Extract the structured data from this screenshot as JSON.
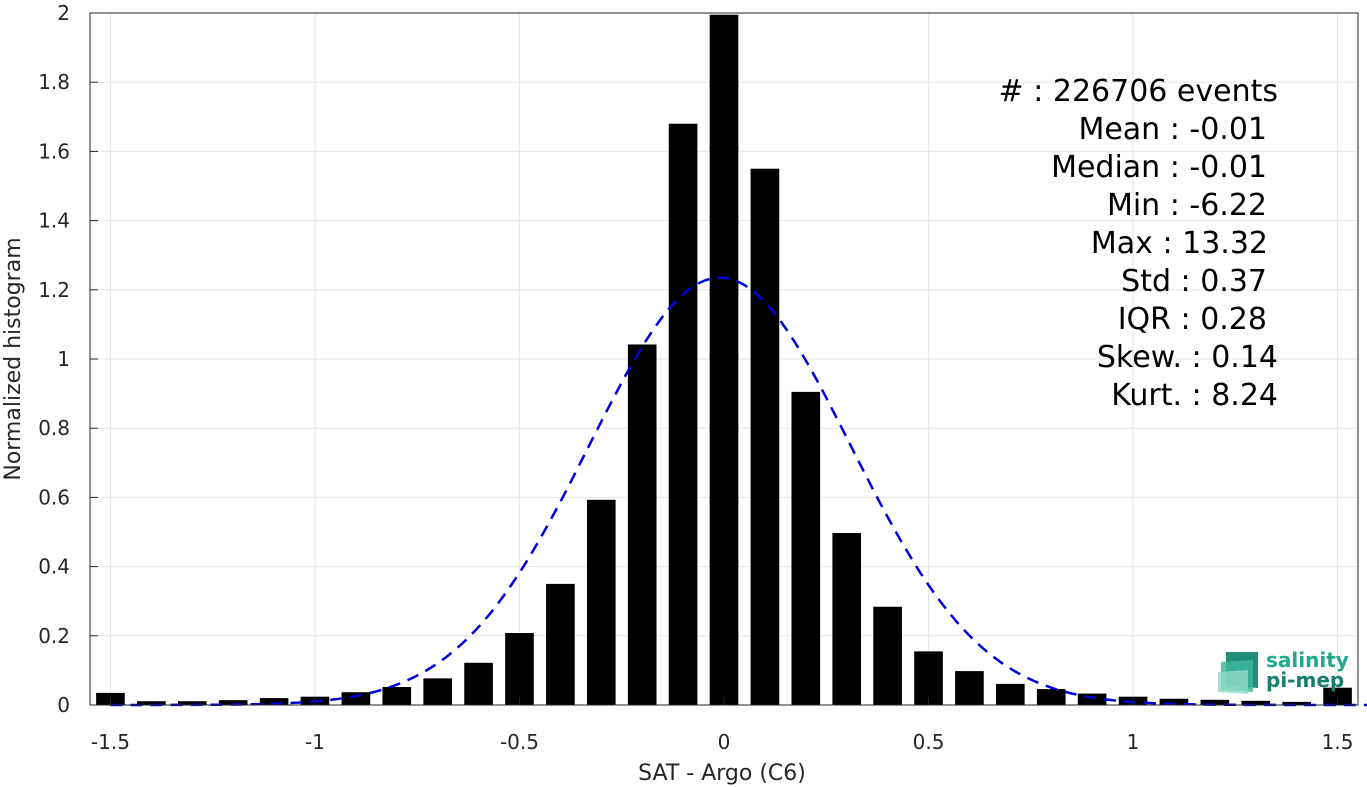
{
  "chart_data": {
    "type": "bar",
    "title": "",
    "xlabel": "SAT - Argo (C6)",
    "ylabel": "Normalized histogram",
    "xlim": [
      -1.55,
      1.55
    ],
    "ylim": [
      0,
      2
    ],
    "grid": true,
    "xticks": [
      -1.5,
      -1,
      -0.5,
      0,
      0.5,
      1,
      1.5
    ],
    "xtick_labels": [
      "-1.5",
      "-1",
      "-0.5",
      "0",
      "0.5",
      "1",
      "1.5"
    ],
    "yticks": [
      0,
      0.2,
      0.4,
      0.6,
      0.8,
      1,
      1.2,
      1.4,
      1.6,
      1.8,
      2
    ],
    "ytick_labels": [
      "0",
      "0.2",
      "0.4",
      "0.6",
      "0.8",
      "1",
      "1.2",
      "1.4",
      "1.6",
      "1.8",
      "2"
    ],
    "bar_color": "#000000",
    "bar_width": 0.07,
    "x": [
      -1.5,
      -1.4,
      -1.3,
      -1.2,
      -1.1,
      -1.0,
      -0.9,
      -0.8,
      -0.7,
      -0.6,
      -0.5,
      -0.4,
      -0.3,
      -0.2,
      -0.1,
      0.0,
      0.1,
      0.2,
      0.3,
      0.4,
      0.5,
      0.6,
      0.7,
      0.8,
      0.9,
      1.0,
      1.1,
      1.2,
      1.3,
      1.4,
      1.5
    ],
    "values": [
      0.035,
      0.011,
      0.011,
      0.014,
      0.02,
      0.024,
      0.037,
      0.052,
      0.077,
      0.122,
      0.208,
      0.35,
      0.593,
      1.042,
      1.68,
      1.995,
      1.55,
      0.905,
      0.497,
      0.284,
      0.155,
      0.098,
      0.061,
      0.046,
      0.033,
      0.024,
      0.018,
      0.015,
      0.012,
      0.009,
      0.05
    ],
    "fit_curve": {
      "style": "dashed",
      "color": "#0000dd",
      "mean": -0.01,
      "std": 0.32,
      "peak": 1.235
    },
    "annotations": [
      {
        "label": "#",
        "value": ": 226706 events"
      },
      {
        "label": "Mean",
        "value": ": -0.01"
      },
      {
        "label": "Median",
        "value": ": -0.01"
      },
      {
        "label": "Min",
        "value": ": -6.22"
      },
      {
        "label": "Max",
        "value": ": 13.32"
      },
      {
        "label": "Std",
        "value": ": 0.37"
      },
      {
        "label": "IQR",
        "value": ": 0.28"
      },
      {
        "label": "Skew.",
        "value": ": 0.14"
      },
      {
        "label": "Kurt.",
        "value": ": 8.24"
      }
    ]
  },
  "logo": {
    "line1": "salinity",
    "line2": "pi-mep",
    "color1": "#21a88c",
    "color2": "#16806a"
  }
}
